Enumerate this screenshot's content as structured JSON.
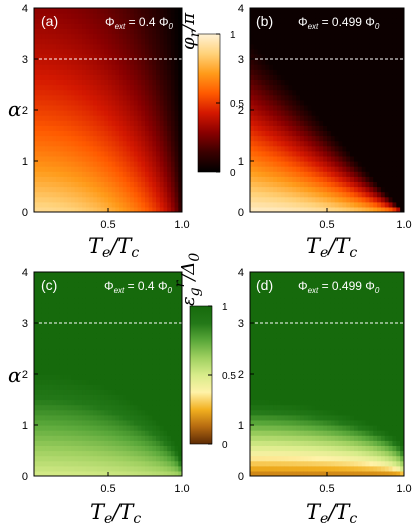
{
  "chart_data": [
    {
      "type": "heatmap",
      "panel": "(a)",
      "flux": "Φ",
      "flux_sub": "ext",
      "flux_value": " = 0.4 Φ",
      "flux_value_sub": "0",
      "quantity": "phase",
      "xlabel": "T",
      "xlabel_sub": "e",
      "xlabel_den": "T",
      "xlabel_den_sub": "c",
      "ylabel": "α",
      "xlim": [
        0,
        1.0
      ],
      "ylim": [
        0,
        4
      ],
      "xticks": [
        "0.5",
        "1.0"
      ],
      "yticks": [
        "0",
        "1",
        "2",
        "3",
        "4"
      ],
      "dashed_line_y": 3,
      "colormap": "hot"
    },
    {
      "type": "heatmap",
      "panel": "(b)",
      "flux": "Φ",
      "flux_sub": "ext",
      "flux_value": " = 0.499 Φ",
      "flux_value_sub": "0",
      "quantity": "phase",
      "xlabel": "T",
      "xlabel_sub": "e",
      "xlabel_den": "T",
      "xlabel_den_sub": "c",
      "ylabel": "",
      "xlim": [
        0,
        1.0
      ],
      "ylim": [
        0,
        4
      ],
      "xticks": [
        "0.5",
        "1.0"
      ],
      "yticks": [
        "0",
        "1",
        "2",
        "3",
        "4"
      ],
      "dashed_line_y": 3,
      "colormap": "hot"
    },
    {
      "type": "heatmap",
      "panel": "(c)",
      "flux": "Φ",
      "flux_sub": "ext",
      "flux_value": " = 0.4 Φ",
      "flux_value_sub": "0",
      "quantity": "gap",
      "xlabel": "T",
      "xlabel_sub": "e",
      "xlabel_den": "T",
      "xlabel_den_sub": "c",
      "ylabel": "α",
      "xlim": [
        0,
        1.0
      ],
      "ylim": [
        0,
        4
      ],
      "xticks": [
        "0.5",
        "1.0"
      ],
      "yticks": [
        "0",
        "1",
        "2",
        "3",
        "4"
      ],
      "dashed_line_y": 3,
      "colormap": "green"
    },
    {
      "type": "heatmap",
      "panel": "(d)",
      "flux": "Φ",
      "flux_sub": "ext",
      "flux_value": " = 0.499 Φ",
      "flux_value_sub": "0",
      "quantity": "gap",
      "xlabel": "T",
      "xlabel_sub": "e",
      "xlabel_den": "T",
      "xlabel_den_sub": "c",
      "ylabel": "",
      "xlim": [
        0,
        1.0
      ],
      "ylim": [
        0,
        4
      ],
      "xticks": [
        "0.5",
        "1.0"
      ],
      "yticks": [
        "0",
        "1",
        "2",
        "3",
        "4"
      ],
      "dashed_line_y": 3,
      "colormap": "green"
    }
  ],
  "colorbars": [
    {
      "name": "phase",
      "title": "φ",
      "title_sub": "r",
      "title_den": "/π",
      "ticks": [
        "1",
        "0.5",
        "0"
      ],
      "tick_values": [
        1,
        0.5,
        0
      ],
      "range": [
        0,
        1
      ],
      "colors": [
        "#000000",
        "#3a0000",
        "#8a0000",
        "#d41800",
        "#ff5a00",
        "#ff9b1a",
        "#ffd27a",
        "#fff2d6"
      ]
    },
    {
      "name": "gap",
      "title": "ε",
      "title_sub": "g",
      "title_sup": "r",
      "title_den": "/Δ",
      "title_den_sub": "0",
      "ticks": [
        "1",
        "0.5",
        "0"
      ],
      "tick_values": [
        1,
        0.5,
        0
      ],
      "range": [
        0,
        1
      ],
      "colors": [
        "#5c2a05",
        "#b56a10",
        "#f2b020",
        "#fff2a8",
        "#d8ec8a",
        "#9fd060",
        "#5aa83a",
        "#237818",
        "#166a0c"
      ]
    }
  ]
}
